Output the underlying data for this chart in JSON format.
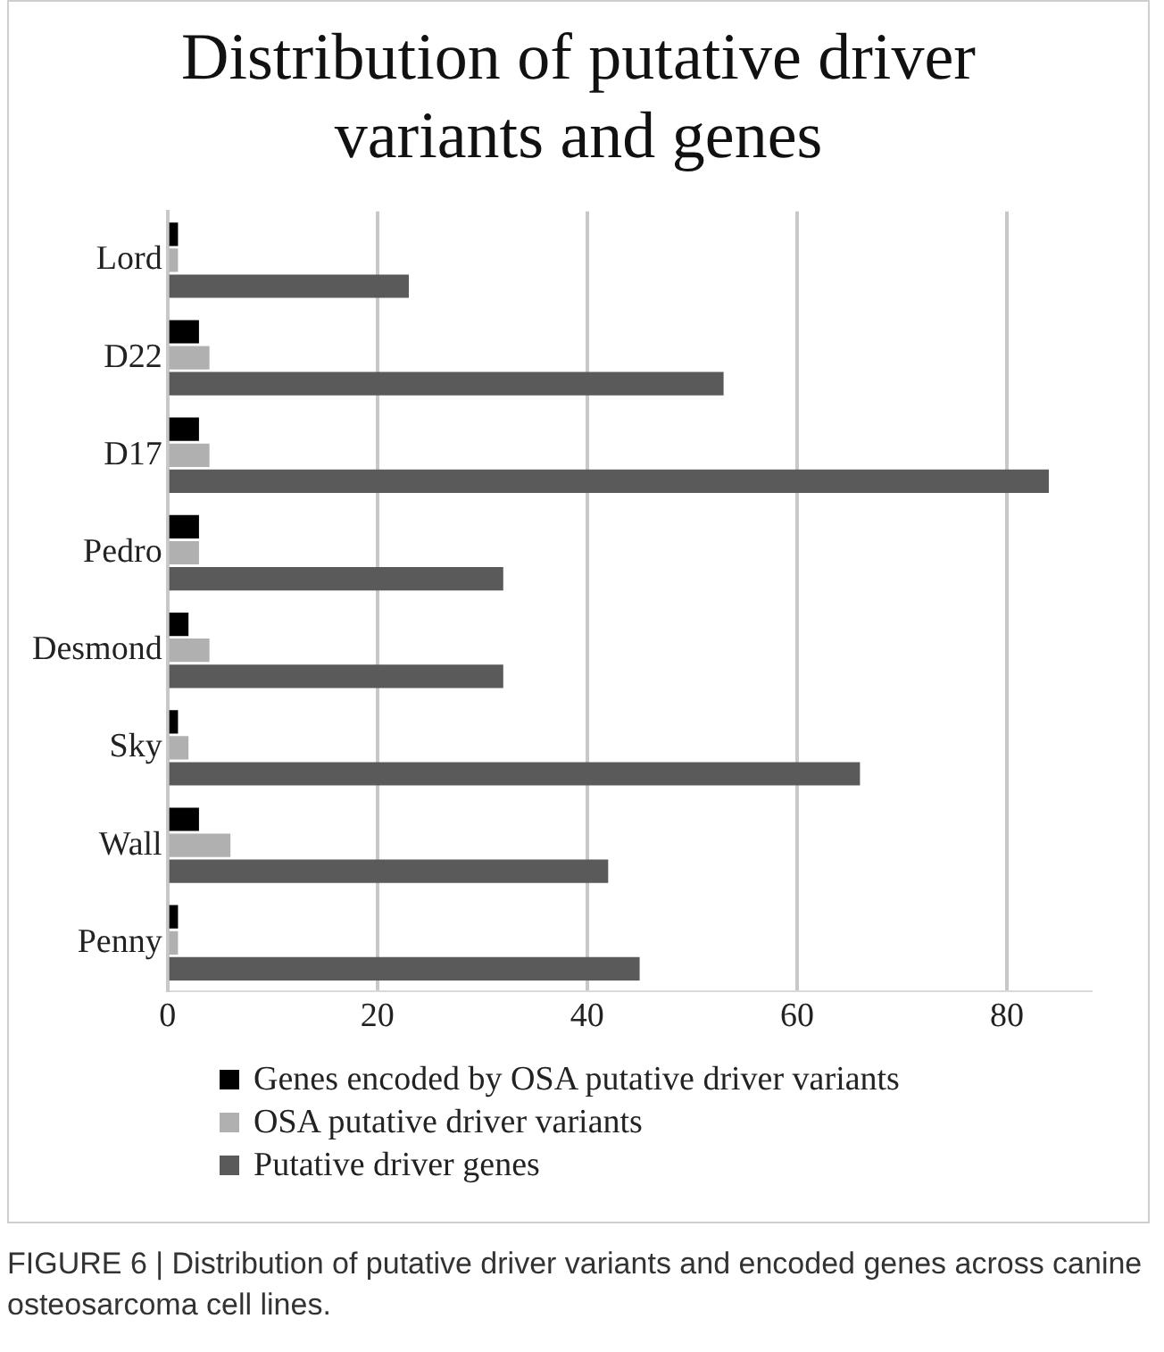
{
  "chart_data": {
    "type": "bar",
    "orientation": "horizontal",
    "title": "Distribution of putative driver variants and genes",
    "categories": [
      "Lord",
      "D22",
      "D17",
      "Pedro",
      "Desmond",
      "Sky",
      "Wall",
      "Penny"
    ],
    "series": [
      {
        "name": "Genes encoded by OSA putative driver variants",
        "color": "#000000",
        "values": [
          1,
          3,
          3,
          3,
          2,
          1,
          3,
          1
        ]
      },
      {
        "name": "OSA putative driver variants",
        "color": "#b0b0b0",
        "values": [
          1,
          4,
          4,
          3,
          4,
          2,
          6,
          1
        ]
      },
      {
        "name": "Putative driver genes",
        "color": "#5a5a5a",
        "values": [
          23,
          53,
          84,
          32,
          32,
          66,
          42,
          45
        ]
      }
    ],
    "xlim": [
      0,
      88
    ],
    "xticks": [
      0,
      20,
      40,
      60,
      80
    ],
    "grid": "x",
    "legend": "bottom",
    "annotations": [
      "FIGURE 6 | Distribution of putative driver variants and encoded genes across canine osteosarcoma cell lines."
    ]
  }
}
